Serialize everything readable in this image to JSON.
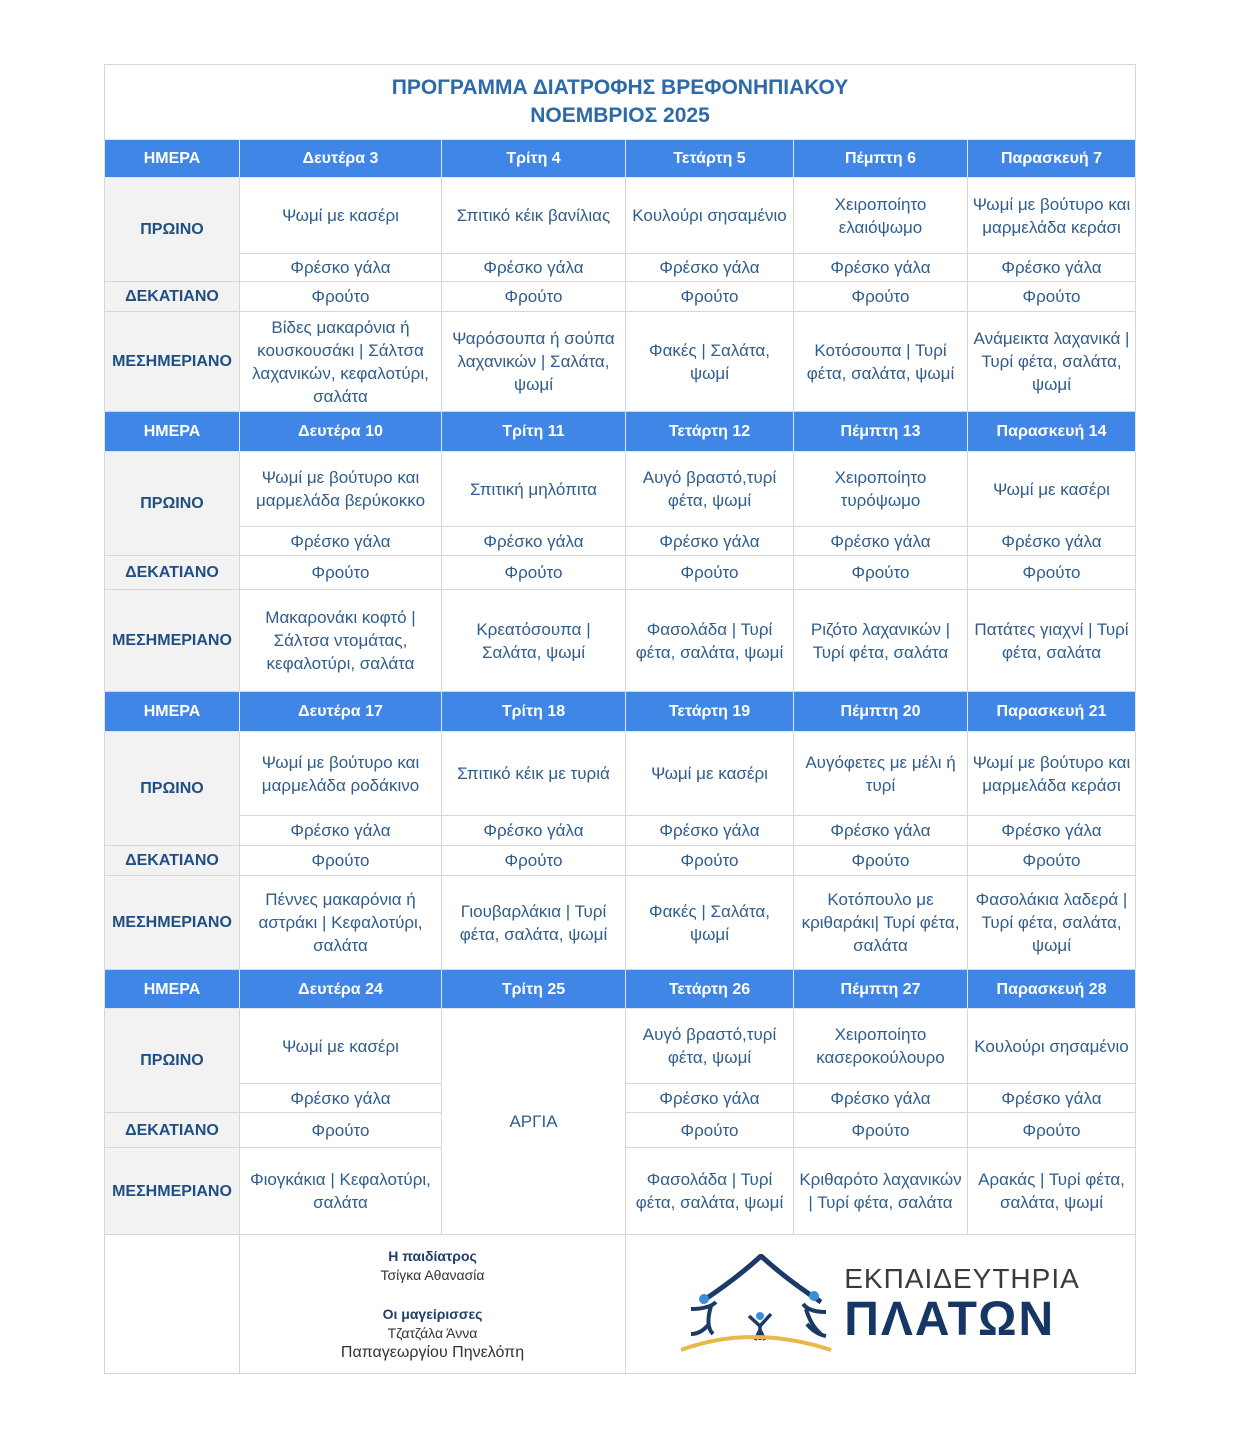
{
  "title": {
    "line1": "ΠΡΟΓΡΑΜΜΑ ΔΙΑΤΡΟΦΗΣ ΒΡΕΦΟΝΗΠΙΑΚΟΥ",
    "line2": "ΝΟΕΜΒΡΙΟΣ 2025"
  },
  "labels": {
    "day": "ΗΜΕΡΑ",
    "breakfast": "ΠΡΩΙΝΟ",
    "snack": "ΔΕΚΑΤΙΑΝΟ",
    "lunch": "ΜΕΣΗΜΕΡΙΑΝΟ"
  },
  "colors": {
    "header_bg": "#3f86e6",
    "text": "#2f5d8c",
    "label": "#1f4f82",
    "label_bg": "#f2f2f2"
  },
  "weeks": [
    {
      "days": [
        "Δευτέρα 3",
        "Τρίτη 4",
        "Τετάρτη 5",
        "Πέμπτη 6",
        "Παρασκευή 7"
      ],
      "breakfast": [
        "Ψωμί με κασέρι",
        "Σπιτικό κέικ βανίλιας",
        "Κουλούρι σησαμένιο",
        "Χειροποίητο ελαιόψωμο",
        "Ψωμί με βούτυρο και μαρμελάδα κεράσι"
      ],
      "milk": [
        "Φρέσκο γάλα",
        "Φρέσκο γάλα",
        "Φρέσκο γάλα",
        "Φρέσκο γάλα",
        "Φρέσκο γάλα"
      ],
      "snack": [
        "Φρούτο",
        "Φρούτο",
        "Φρούτο",
        "Φρούτο",
        "Φρούτο"
      ],
      "lunch": [
        "Βίδες μακαρόνια ή κουσκουσάκι | Σάλτσα λαχανικών, κεφαλοτύρι, σαλάτα",
        "Ψαρόσουπα ή σούπα λαχανικών | Σαλάτα, ψωμί",
        "Φακές | Σαλάτα, ψωμί",
        "Κοτόσουπα | Τυρί φέτα, σαλάτα, ψωμί",
        "Ανάμεικτα λαχανικά | Τυρί φέτα, σαλάτα, ψωμί"
      ]
    },
    {
      "days": [
        "Δευτέρα 10",
        "Τρίτη 11",
        "Τετάρτη 12",
        "Πέμπτη 13",
        "Παρασκευή 14"
      ],
      "breakfast": [
        "Ψωμί με βούτυρο και μαρμελάδα βερύκοκκο",
        "Σπιτική μηλόπιτα",
        "Αυγό βραστό,τυρί φέτα, ψωμί",
        "Χειροποίητο τυρόψωμο",
        "Ψωμί με κασέρι"
      ],
      "milk": [
        "Φρέσκο γάλα",
        "Φρέσκο γάλα",
        "Φρέσκο γάλα",
        "Φρέσκο γάλα",
        "Φρέσκο γάλα"
      ],
      "snack": [
        "Φρούτο",
        "Φρούτο",
        "Φρούτο",
        "Φρούτο",
        "Φρούτο"
      ],
      "lunch": [
        "Μακαρονάκι κοφτό |Σάλτσα ντομάτας, κεφαλοτύρι, σαλάτα",
        "Κρεατόσουπα | Σαλάτα, ψωμί",
        "Φασολάδα | Τυρί φέτα, σαλάτα, ψωμί",
        "Ριζότο λαχανικών | Τυρί φέτα, σαλάτα",
        "Πατάτες γιαχνί | Τυρί φέτα, σαλάτα"
      ]
    },
    {
      "days": [
        "Δευτέρα 17",
        "Τρίτη 18",
        "Τετάρτη 19",
        "Πέμπτη 20",
        "Παρασκευή 21"
      ],
      "breakfast": [
        "Ψωμί με βούτυρο και μαρμελάδα ροδάκινο",
        "Σπιτικό κέικ με τυριά",
        "Ψωμί με κασέρι",
        "Αυγόφετες με μέλι ή τυρί",
        "Ψωμί με βούτυρο και μαρμελάδα κεράσι"
      ],
      "milk": [
        "Φρέσκο γάλα",
        "Φρέσκο γάλα",
        "Φρέσκο γάλα",
        "Φρέσκο γάλα",
        "Φρέσκο γάλα"
      ],
      "snack": [
        "Φρούτο",
        "Φρούτο",
        "Φρούτο",
        "Φρούτο",
        "Φρούτο"
      ],
      "lunch": [
        "Πέννες μακαρόνια ή αστράκι | Κεφαλοτύρι, σαλάτα",
        "Γιουβαρλάκια | Τυρί φέτα, σαλάτα, ψωμί",
        "Φακές | Σαλάτα, ψωμί",
        "Κοτόπουλο με κριθαράκι| Τυρί φέτα, σαλάτα",
        "Φασολάκια λαδερά | Τυρί φέτα, σαλάτα, ψωμί"
      ]
    },
    {
      "days": [
        "Δευτέρα 24",
        "Τρίτη 25",
        "Τετάρτη 26",
        "Πέμπτη 27",
        "Παρασκευή 28"
      ],
      "holiday_index": 1,
      "holiday_label": "ΑΡΓΙΑ",
      "breakfast": [
        "Ψωμί με κασέρι",
        "",
        "Αυγό βραστό,τυρί φέτα, ψωμί",
        "Χειροποίητο κασεροκούλουρο",
        "Κουλούρι σησαμένιο"
      ],
      "milk": [
        "Φρέσκο γάλα",
        "",
        "Φρέσκο γάλα",
        "Φρέσκο γάλα",
        "Φρέσκο γάλα"
      ],
      "snack": [
        "Φρούτο",
        "",
        "Φρούτο",
        "Φρούτο",
        "Φρούτο"
      ],
      "lunch": [
        "Φιογκάκια | Κεφαλοτύρι, σαλάτα",
        "",
        "Φασολάδα | Τυρί φέτα, σαλάτα, ψωμί",
        "Κριθαρότο λαχανικών | Τυρί φέτα, σαλάτα",
        "Αρακάς | Τυρί φέτα, σαλάτα, ψωμί"
      ]
    }
  ],
  "footer": {
    "pediatrician_title": "Η παιδίατρος",
    "pediatrician_name": "Τσίγκα Αθανασία",
    "cooks_title": "Οι μαγείρισσες",
    "cook1": "Τζατζάλα Άννα",
    "cook2": "Παπαγεωργίου Πηνελόπη",
    "logo_line1": "ΕΚΠΑΙΔΕΥΤΗΡΙΑ",
    "logo_line2": "ΠΛΑΤΩΝ"
  }
}
